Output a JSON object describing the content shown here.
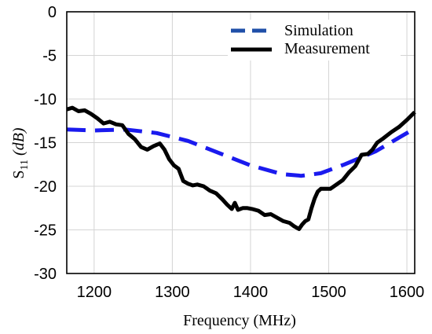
{
  "chart_data": {
    "type": "line",
    "title": "",
    "xlabel": "Frequency (MHz)",
    "ylabel": {
      "base": "S",
      "sub": "11",
      "unit": "(dB)"
    },
    "xlim": [
      1165,
      1610
    ],
    "ylim": [
      -30,
      0
    ],
    "xticks": [
      1200,
      1300,
      1400,
      1500,
      1600
    ],
    "yticks": [
      0,
      -5,
      -10,
      -15,
      -20,
      -25,
      -30
    ],
    "grid": true,
    "legend_position": "top-right",
    "series": [
      {
        "name": "Simulation",
        "color": "#1a1aee",
        "style": "dashed",
        "x": [
          1165,
          1200,
          1240,
          1280,
          1320,
          1360,
          1400,
          1440,
          1465,
          1490,
          1520,
          1560,
          1600,
          1610
        ],
        "y": [
          -13.5,
          -13.6,
          -13.5,
          -13.9,
          -14.8,
          -16.2,
          -17.6,
          -18.6,
          -18.8,
          -18.5,
          -17.5,
          -16.0,
          -13.9,
          -13.4
        ]
      },
      {
        "name": "Measurement",
        "color": "#000000",
        "style": "solid",
        "x": [
          1165,
          1172,
          1180,
          1188,
          1196,
          1204,
          1212,
          1220,
          1228,
          1236,
          1244,
          1252,
          1260,
          1268,
          1276,
          1284,
          1290,
          1296,
          1302,
          1308,
          1314,
          1320,
          1326,
          1332,
          1340,
          1348,
          1356,
          1364,
          1370,
          1376,
          1380,
          1384,
          1390,
          1396,
          1402,
          1410,
          1418,
          1426,
          1434,
          1442,
          1450,
          1456,
          1462,
          1466,
          1470,
          1474,
          1478,
          1482,
          1486,
          1490,
          1496,
          1502,
          1510,
          1518,
          1526,
          1534,
          1542,
          1550,
          1556,
          1562,
          1570,
          1580,
          1590,
          1600,
          1610
        ],
        "y": [
          -11.2,
          -11.0,
          -11.4,
          -11.3,
          -11.7,
          -12.2,
          -12.8,
          -12.6,
          -12.9,
          -13.0,
          -14.0,
          -14.6,
          -15.5,
          -15.8,
          -15.4,
          -15.1,
          -15.8,
          -16.9,
          -17.6,
          -18.0,
          -19.4,
          -19.7,
          -19.9,
          -19.8,
          -20.0,
          -20.5,
          -20.8,
          -21.5,
          -22.1,
          -22.6,
          -21.9,
          -22.7,
          -22.5,
          -22.5,
          -22.6,
          -22.8,
          -23.3,
          -23.2,
          -23.6,
          -24.0,
          -24.2,
          -24.6,
          -24.9,
          -24.4,
          -24.0,
          -23.8,
          -22.5,
          -21.4,
          -20.6,
          -20.3,
          -20.3,
          -20.3,
          -19.8,
          -19.3,
          -18.4,
          -17.7,
          -16.4,
          -16.3,
          -15.8,
          -15.0,
          -14.5,
          -13.8,
          -13.2,
          -12.4,
          -11.5
        ]
      }
    ]
  }
}
